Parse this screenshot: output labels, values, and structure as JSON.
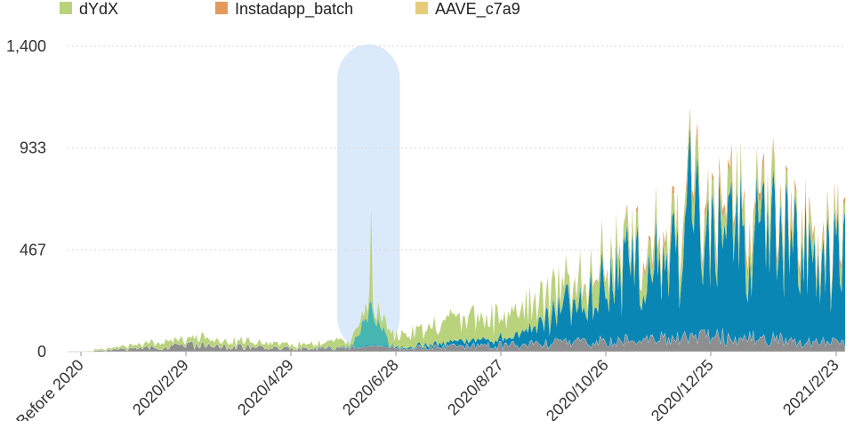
{
  "chart_data": {
    "type": "area",
    "stacked": true,
    "legend": [
      {
        "name": "dYdX",
        "color": "#b9d37d"
      },
      {
        "name": "Instadapp_batch",
        "color": "#e39a5c"
      },
      {
        "name": "AAVE_c7a9",
        "color": "#e7cd7b"
      }
    ],
    "legend_placement": "top",
    "y_ticks": [
      "0",
      "467",
      "933",
      "1,400"
    ],
    "ylim": [
      0,
      1400
    ],
    "x_ticks": [
      "Before 2020",
      "2020/2/29",
      "2020/4/29",
      "2020/6/28",
      "2020/8/27",
      "2020/10/26",
      "2020/12/25",
      "2021/2/23"
    ],
    "grid": "horizontal dotted",
    "highlight_band": {
      "from": "2020/6/1",
      "to": "2020/6/21",
      "color": "#dbeafb"
    },
    "colors": {
      "gray": "#8e8e8e",
      "blue": "#0a86b5",
      "teal": "#47b6b3",
      "green": "#b9d37d",
      "orange": "#e39a5c",
      "yellow": "#e7cd7b"
    },
    "series_approx": [
      {
        "color_role": "gray",
        "x": [
          "2020/1/1",
          "2020/2/29",
          "2020/4/29",
          "2020/6/28",
          "2020/8/27",
          "2020/10/26",
          "2020/12/25",
          "2021/2/23"
        ],
        "y": [
          0,
          30,
          15,
          20,
          30,
          50,
          70,
          40
        ]
      },
      {
        "color_role": "blue",
        "x": [
          "2020/1/1",
          "2020/2/29",
          "2020/4/29",
          "2020/6/28",
          "2020/8/27",
          "2020/10/26",
          "2020/12/25",
          "2021/2/23"
        ],
        "y": [
          0,
          0,
          0,
          5,
          30,
          300,
          500,
          400
        ]
      },
      {
        "color_role": "teal",
        "x": [
          "2020/1/1",
          "2020/2/29",
          "2020/4/29",
          "2020/6/28",
          "2020/8/27",
          "2020/10/26",
          "2020/12/25",
          "2021/2/23"
        ],
        "y": [
          0,
          0,
          0,
          150,
          0,
          0,
          0,
          0
        ]
      },
      {
        "color_role": "green",
        "x": [
          "2020/1/1",
          "2020/2/29",
          "2020/4/29",
          "2020/6/28",
          "2020/8/27",
          "2020/10/26",
          "2020/12/25",
          "2021/2/23"
        ],
        "y": [
          0,
          30,
          15,
          60,
          120,
          80,
          100,
          60
        ]
      },
      {
        "color_role": "orange",
        "x": [
          "2020/1/1",
          "2020/2/29",
          "2020/4/29",
          "2020/6/28",
          "2020/8/27",
          "2020/10/26",
          "2020/12/25",
          "2021/2/23"
        ],
        "y": [
          0,
          0,
          0,
          0,
          0,
          10,
          30,
          20
        ]
      }
    ]
  }
}
